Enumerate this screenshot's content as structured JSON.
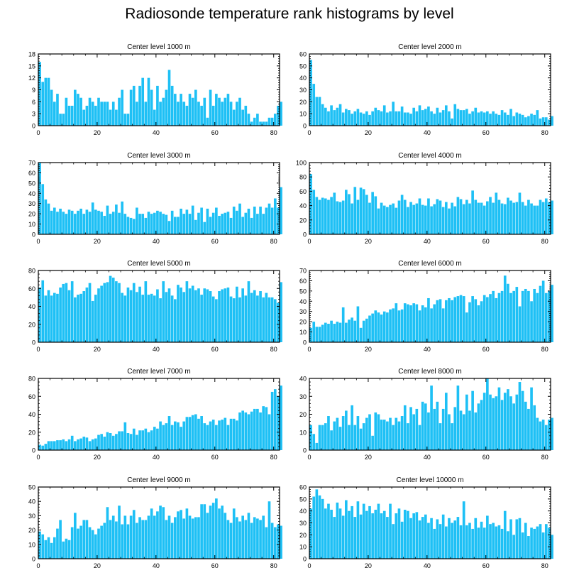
{
  "title": "Radiosonde temperature rank histograms by level",
  "bar_color": "#1ec0f5",
  "chart_data": [
    {
      "type": "bar",
      "title": "Center level 1000 m",
      "xlim": [
        0,
        82
      ],
      "ylim": [
        0,
        18
      ],
      "xticks": [
        0,
        20,
        40,
        60,
        80
      ],
      "yticks": [
        0,
        3,
        6,
        9,
        12,
        15,
        18
      ],
      "values": [
        16,
        11,
        12,
        12,
        9,
        6,
        8,
        3,
        3,
        7,
        5,
        5,
        9,
        8,
        7,
        4,
        5,
        7,
        6,
        5,
        7,
        6,
        6,
        6,
        4,
        6,
        4,
        7,
        9,
        3,
        3,
        9,
        10,
        6,
        10,
        12,
        6,
        12,
        9,
        4,
        10,
        6,
        7,
        9,
        14,
        10,
        8,
        6,
        8,
        6,
        5,
        8,
        7,
        9,
        6,
        5,
        7,
        2,
        9,
        5,
        8,
        7,
        6,
        7,
        8,
        6,
        4,
        6,
        7,
        4,
        5,
        3,
        1,
        2,
        3,
        1,
        1,
        1,
        2,
        2,
        3,
        5,
        6
      ]
    },
    {
      "type": "bar",
      "title": "Center level 2000 m",
      "xlim": [
        0,
        82
      ],
      "ylim": [
        0,
        60
      ],
      "xticks": [
        0,
        20,
        40,
        60,
        80
      ],
      "yticks": [
        0,
        10,
        20,
        30,
        40,
        50,
        60
      ],
      "values": [
        55,
        35,
        24,
        24,
        18,
        15,
        12,
        17,
        13,
        15,
        18,
        11,
        14,
        13,
        10,
        12,
        14,
        11,
        10,
        12,
        9,
        12,
        15,
        13,
        12,
        17,
        11,
        12,
        20,
        12,
        12,
        16,
        11,
        11,
        10,
        15,
        12,
        17,
        13,
        14,
        16,
        12,
        10,
        15,
        11,
        13,
        17,
        12,
        6,
        18,
        14,
        13,
        13,
        14,
        10,
        12,
        15,
        11,
        12,
        11,
        12,
        10,
        12,
        10,
        9,
        13,
        11,
        9,
        14,
        8,
        11,
        10,
        9,
        7,
        8,
        10,
        9,
        13,
        6,
        7,
        7,
        5,
        8
      ]
    },
    {
      "type": "bar",
      "title": "Center level 3000 m",
      "xlim": [
        0,
        82
      ],
      "ylim": [
        0,
        70
      ],
      "xticks": [
        0,
        20,
        40,
        60,
        80
      ],
      "yticks": [
        0,
        10,
        20,
        30,
        40,
        50,
        60,
        70
      ],
      "values": [
        70,
        49,
        34,
        30,
        23,
        26,
        22,
        25,
        22,
        20,
        24,
        23,
        20,
        23,
        25,
        20,
        24,
        22,
        31,
        24,
        23,
        22,
        18,
        28,
        20,
        22,
        29,
        21,
        32,
        20,
        17,
        16,
        15,
        26,
        20,
        20,
        16,
        22,
        20,
        21,
        23,
        22,
        20,
        19,
        13,
        23,
        17,
        17,
        25,
        20,
        24,
        20,
        28,
        14,
        21,
        26,
        12,
        25,
        17,
        21,
        26,
        18,
        20,
        21,
        22,
        16,
        27,
        23,
        30,
        17,
        21,
        25,
        16,
        27,
        20,
        27,
        20,
        26,
        30,
        26,
        35,
        26,
        46
      ]
    },
    {
      "type": "bar",
      "title": "Center level 4000 m",
      "xlim": [
        0,
        82
      ],
      "ylim": [
        0,
        100
      ],
      "xticks": [
        0,
        20,
        40,
        60,
        80
      ],
      "yticks": [
        0,
        20,
        40,
        60,
        80,
        100
      ],
      "values": [
        84,
        62,
        52,
        48,
        51,
        50,
        48,
        52,
        58,
        46,
        45,
        47,
        62,
        56,
        43,
        66,
        48,
        65,
        63,
        55,
        44,
        59,
        53,
        36,
        44,
        40,
        38,
        41,
        43,
        37,
        47,
        55,
        48,
        38,
        45,
        41,
        43,
        50,
        41,
        40,
        50,
        39,
        42,
        49,
        47,
        38,
        45,
        36,
        44,
        39,
        52,
        49,
        42,
        48,
        43,
        61,
        48,
        44,
        44,
        40,
        46,
        52,
        44,
        58,
        48,
        43,
        42,
        51,
        47,
        44,
        45,
        58,
        45,
        40,
        48,
        43,
        40,
        40,
        48,
        45,
        50,
        45,
        47
      ]
    },
    {
      "type": "bar",
      "title": "Center level 5000 m",
      "xlim": [
        0,
        82
      ],
      "ylim": [
        0,
        80
      ],
      "xticks": [
        0,
        20,
        40,
        60,
        80
      ],
      "yticks": [
        0,
        20,
        40,
        60,
        80
      ],
      "values": [
        61,
        69,
        52,
        58,
        52,
        55,
        54,
        61,
        65,
        66,
        58,
        68,
        50,
        53,
        54,
        57,
        61,
        66,
        46,
        53,
        60,
        63,
        66,
        67,
        74,
        72,
        68,
        66,
        55,
        52,
        61,
        58,
        66,
        56,
        62,
        53,
        68,
        53,
        54,
        52,
        59,
        49,
        68,
        56,
        60,
        52,
        48,
        64,
        61,
        56,
        68,
        60,
        63,
        58,
        60,
        53,
        60,
        59,
        57,
        51,
        48,
        57,
        59,
        60,
        61,
        51,
        49,
        62,
        50,
        60,
        52,
        68,
        55,
        58,
        52,
        57,
        50,
        55,
        50,
        50,
        48,
        44,
        67
      ]
    },
    {
      "type": "bar",
      "title": "Center level 6000 m",
      "xlim": [
        0,
        82
      ],
      "ylim": [
        0,
        70
      ],
      "xticks": [
        0,
        20,
        40,
        60,
        80
      ],
      "yticks": [
        0,
        10,
        20,
        30,
        40,
        50,
        60,
        70
      ],
      "values": [
        14,
        20,
        15,
        15,
        17,
        19,
        18,
        21,
        18,
        20,
        19,
        34,
        19,
        22,
        24,
        21,
        35,
        14,
        21,
        23,
        26,
        28,
        31,
        29,
        27,
        30,
        29,
        32,
        33,
        38,
        31,
        32,
        38,
        37,
        36,
        38,
        37,
        31,
        36,
        34,
        43,
        33,
        37,
        41,
        42,
        33,
        41,
        43,
        41,
        44,
        45,
        46,
        45,
        29,
        39,
        45,
        42,
        36,
        40,
        46,
        44,
        47,
        50,
        43,
        48,
        50,
        65,
        57,
        48,
        50,
        54,
        35,
        50,
        52,
        50,
        40,
        52,
        48,
        55,
        60,
        48,
        50,
        56
      ]
    },
    {
      "type": "bar",
      "title": "Center level 7000 m",
      "xlim": [
        0,
        82
      ],
      "ylim": [
        0,
        80
      ],
      "xticks": [
        0,
        20,
        40,
        60,
        80
      ],
      "yticks": [
        0,
        20,
        40,
        60,
        80
      ],
      "values": [
        6,
        5,
        7,
        10,
        10,
        10,
        11,
        11,
        12,
        10,
        12,
        16,
        10,
        12,
        13,
        15,
        14,
        10,
        12,
        13,
        17,
        18,
        15,
        20,
        19,
        16,
        18,
        21,
        21,
        31,
        19,
        18,
        24,
        17,
        22,
        22,
        24,
        20,
        22,
        26,
        24,
        32,
        28,
        30,
        38,
        28,
        32,
        31,
        26,
        32,
        37,
        37,
        39,
        40,
        35,
        38,
        30,
        28,
        32,
        34,
        28,
        33,
        34,
        36,
        28,
        35,
        35,
        33,
        42,
        44,
        42,
        40,
        43,
        46,
        46,
        42,
        49,
        48,
        40,
        65,
        68,
        60,
        72
      ]
    },
    {
      "type": "bar",
      "title": "Center level 8000 m",
      "xlim": [
        0,
        82
      ],
      "ylim": [
        0,
        40
      ],
      "xticks": [
        0,
        20,
        40,
        60,
        80
      ],
      "yticks": [
        0,
        10,
        20,
        30,
        40
      ],
      "values": [
        14,
        9,
        4,
        14,
        14,
        15,
        19,
        11,
        16,
        18,
        13,
        19,
        22,
        14,
        25,
        14,
        19,
        12,
        15,
        18,
        20,
        8,
        21,
        20,
        17,
        17,
        16,
        18,
        14,
        18,
        16,
        19,
        25,
        15,
        24,
        20,
        23,
        14,
        27,
        26,
        21,
        36,
        23,
        27,
        15,
        23,
        32,
        20,
        15,
        24,
        36,
        22,
        20,
        31,
        22,
        33,
        21,
        26,
        28,
        32,
        40,
        31,
        29,
        30,
        35,
        28,
        32,
        34,
        30,
        26,
        31,
        38,
        33,
        27,
        23,
        35,
        25,
        18,
        16,
        17,
        14,
        17,
        18
      ]
    },
    {
      "type": "bar",
      "title": "Center level 9000 m",
      "xlim": [
        0,
        82
      ],
      "ylim": [
        0,
        50
      ],
      "xticks": [
        0,
        20,
        40,
        60,
        80
      ],
      "yticks": [
        0,
        10,
        20,
        30,
        40,
        50
      ],
      "values": [
        19,
        17,
        13,
        15,
        11,
        15,
        21,
        27,
        12,
        14,
        13,
        22,
        32,
        21,
        23,
        27,
        27,
        22,
        20,
        17,
        21,
        23,
        25,
        36,
        27,
        30,
        26,
        37,
        24,
        30,
        24,
        30,
        34,
        25,
        29,
        27,
        27,
        30,
        35,
        30,
        33,
        37,
        36,
        27,
        30,
        25,
        29,
        33,
        34,
        28,
        35,
        30,
        28,
        29,
        29,
        38,
        38,
        32,
        37,
        39,
        42,
        35,
        37,
        32,
        27,
        25,
        35,
        29,
        26,
        30,
        27,
        32,
        25,
        29,
        28,
        27,
        30,
        22,
        40,
        25,
        22,
        24,
        23
      ]
    },
    {
      "type": "bar",
      "title": "Center level 10000 m",
      "xlim": [
        0,
        82
      ],
      "ylim": [
        0,
        60
      ],
      "xticks": [
        0,
        20,
        40,
        60,
        80
      ],
      "yticks": [
        0,
        10,
        20,
        30,
        40,
        50,
        60
      ],
      "values": [
        42,
        52,
        58,
        53,
        50,
        42,
        46,
        41,
        35,
        47,
        42,
        36,
        49,
        40,
        44,
        35,
        48,
        37,
        46,
        40,
        44,
        38,
        41,
        46,
        38,
        40,
        35,
        46,
        29,
        38,
        42,
        31,
        41,
        40,
        34,
        38,
        39,
        32,
        35,
        37,
        30,
        34,
        25,
        33,
        29,
        37,
        27,
        34,
        30,
        32,
        35,
        28,
        48,
        28,
        30,
        25,
        34,
        26,
        31,
        26,
        36,
        29,
        30,
        27,
        28,
        25,
        40,
        23,
        33,
        20,
        33,
        34,
        22,
        30,
        19,
        26,
        25,
        27,
        29,
        22,
        29,
        26,
        20
      ]
    }
  ]
}
